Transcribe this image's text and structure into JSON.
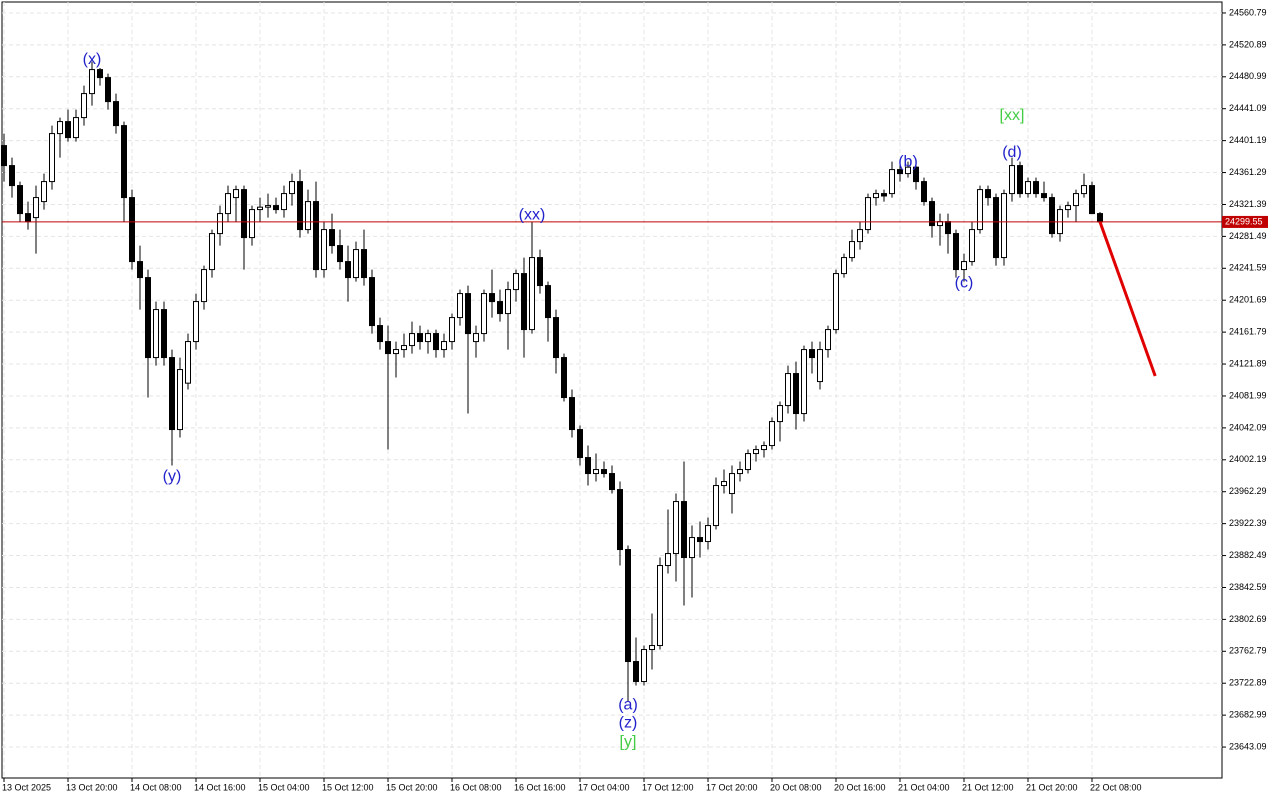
{
  "chart_data": {
    "type": "candlestick",
    "ylim": [
      23604.4,
      24574.5
    ],
    "xlim": [
      -0.25,
      152.25
    ],
    "grid": true,
    "bull_color": "#ffffff",
    "bear_color": "#000000",
    "yticks": [
      24560.79,
      24520.89,
      24480.99,
      24441.09,
      24401.19,
      24361.29,
      24321.39,
      24281.49,
      24241.59,
      24201.69,
      24161.79,
      24121.89,
      24081.99,
      24042.09,
      24002.19,
      23962.29,
      23922.39,
      23882.49,
      23842.59,
      23802.69,
      23762.79,
      23722.89,
      23682.99,
      23643.09
    ],
    "xticks": [
      {
        "value": 0,
        "label": "13 Oct 2025"
      },
      {
        "value": 8,
        "label": "13 Oct 20:00"
      },
      {
        "value": 16,
        "label": "14 Oct 08:00"
      },
      {
        "value": 24,
        "label": "14 Oct 16:00"
      },
      {
        "value": 32,
        "label": "15 Oct 04:00"
      },
      {
        "value": 40,
        "label": "15 Oct 12:00"
      },
      {
        "value": 48,
        "label": "15 Oct 20:00"
      },
      {
        "value": 56,
        "label": "16 Oct 08:00"
      },
      {
        "value": 64,
        "label": "16 Oct 16:00"
      },
      {
        "value": 72,
        "label": "17 Oct 04:00"
      },
      {
        "value": 80,
        "label": "17 Oct 12:00"
      },
      {
        "value": 88,
        "label": "17 Oct 20:00"
      },
      {
        "value": 96,
        "label": "20 Oct 08:00"
      },
      {
        "value": 104,
        "label": "20 Oct 16:00"
      },
      {
        "value": 112,
        "label": "21 Oct 04:00"
      },
      {
        "value": 120,
        "label": "21 Oct 12:00"
      },
      {
        "value": 128,
        "label": "21 Oct 20:00"
      },
      {
        "value": 136,
        "label": "22 Oct 08:00"
      }
    ],
    "candles": [
      [
        24395,
        24410,
        24350,
        24370
      ],
      [
        24370,
        24380,
        24330,
        24345
      ],
      [
        24345,
        24350,
        24300,
        24310
      ],
      [
        24310,
        24325,
        24290,
        24300
      ],
      [
        24305,
        24345,
        24260,
        24330
      ],
      [
        24325,
        24360,
        24315,
        24350
      ],
      [
        24350,
        24420,
        24340,
        24410
      ],
      [
        24410,
        24430,
        24380,
        24425
      ],
      [
        24425,
        24440,
        24400,
        24405
      ],
      [
        24405,
        24440,
        24400,
        24430
      ],
      [
        24430,
        24470,
        24420,
        24460
      ],
      [
        24460,
        24500,
        24445,
        24490
      ],
      [
        24490,
        24492,
        24470,
        24480
      ],
      [
        24480,
        24485,
        24440,
        24450
      ],
      [
        24450,
        24460,
        24410,
        24420
      ],
      [
        24420,
        24425,
        24300,
        24330
      ],
      [
        24330,
        24340,
        24240,
        24250
      ],
      [
        24250,
        24270,
        24190,
        24230
      ],
      [
        24230,
        24240,
        24080,
        24130
      ],
      [
        24130,
        24200,
        24120,
        24190
      ],
      [
        24190,
        24200,
        24120,
        24130
      ],
      [
        24130,
        24140,
        23995,
        24040
      ],
      [
        24040,
        24130,
        24030,
        24115
      ],
      [
        24098,
        24160,
        24090,
        24150
      ],
      [
        24150,
        24210,
        24140,
        24200
      ],
      [
        24200,
        24245,
        24190,
        24240
      ],
      [
        24240,
        24290,
        24230,
        24285
      ],
      [
        24285,
        24320,
        24270,
        24310
      ],
      [
        24310,
        24345,
        24300,
        24335
      ],
      [
        24330,
        24345,
        24300,
        24340
      ],
      [
        24340,
        24345,
        24240,
        24280
      ],
      [
        24280,
        24320,
        24270,
        24315
      ],
      [
        24315,
        24330,
        24300,
        24318
      ],
      [
        24318,
        24335,
        24305,
        24320
      ],
      [
        24320,
        24330,
        24310,
        24315
      ],
      [
        24315,
        24345,
        24305,
        24335
      ],
      [
        24335,
        24360,
        24320,
        24350
      ],
      [
        24350,
        24365,
        24280,
        24290
      ],
      [
        24290,
        24340,
        24285,
        24325
      ],
      [
        24325,
        24350,
        24230,
        24240
      ],
      [
        24240,
        24300,
        24230,
        24290
      ],
      [
        24290,
        24310,
        24260,
        24270
      ],
      [
        24270,
        24290,
        24240,
        24250
      ],
      [
        24250,
        24270,
        24200,
        24230
      ],
      [
        24230,
        24275,
        24225,
        24265
      ],
      [
        24265,
        24290,
        24220,
        24230
      ],
      [
        24230,
        24240,
        24160,
        24170
      ],
      [
        24170,
        24180,
        24140,
        24150
      ],
      [
        24150,
        24170,
        24015,
        24135
      ],
      [
        24135,
        24150,
        24105,
        24140
      ],
      [
        24140,
        24160,
        24130,
        24145
      ],
      [
        24145,
        24175,
        24135,
        24160
      ],
      [
        24160,
        24170,
        24140,
        24150
      ],
      [
        24150,
        24165,
        24135,
        24160
      ],
      [
        24160,
        24165,
        24130,
        24140
      ],
      [
        24140,
        24160,
        24130,
        24150
      ],
      [
        24150,
        24185,
        24140,
        24180
      ],
      [
        24180,
        24215,
        24170,
        24210
      ],
      [
        24210,
        24220,
        24060,
        24160
      ],
      [
        24150,
        24170,
        24130,
        24160
      ],
      [
        24160,
        24215,
        24150,
        24210
      ],
      [
        24210,
        24240,
        24180,
        24200
      ],
      [
        24200,
        24215,
        24175,
        24185
      ],
      [
        24185,
        24225,
        24140,
        24215
      ],
      [
        24215,
        24240,
        24200,
        24235
      ],
      [
        24235,
        24255,
        24130,
        24165
      ],
      [
        24165,
        24300,
        24160,
        24255
      ],
      [
        24255,
        24265,
        24210,
        24220
      ],
      [
        24220,
        24225,
        24150,
        24180
      ],
      [
        24180,
        24190,
        24110,
        24130
      ],
      [
        24130,
        24135,
        24075,
        24080
      ],
      [
        24080,
        24090,
        24030,
        24040
      ],
      [
        24040,
        24045,
        23995,
        24005
      ],
      [
        24005,
        24020,
        23970,
        23985
      ],
      [
        23985,
        24010,
        23975,
        23990
      ],
      [
        23990,
        24000,
        23980,
        23985
      ],
      [
        23985,
        23995,
        23960,
        23965
      ],
      [
        23965,
        23975,
        23870,
        23890
      ],
      [
        23890,
        23895,
        23700,
        23750
      ],
      [
        23750,
        23780,
        23720,
        23725
      ],
      [
        23725,
        23770,
        23720,
        23765
      ],
      [
        23765,
        23810,
        23740,
        23770
      ],
      [
        23770,
        23880,
        23765,
        23870
      ],
      [
        23870,
        23940,
        23860,
        23885
      ],
      [
        23885,
        23960,
        23850,
        23950
      ],
      [
        23950,
        24000,
        23820,
        23880
      ],
      [
        23880,
        23920,
        23830,
        23905
      ],
      [
        23905,
        23925,
        23880,
        23900
      ],
      [
        23900,
        23930,
        23890,
        23920
      ],
      [
        23920,
        23980,
        23915,
        23970
      ],
      [
        23970,
        23990,
        23960,
        23975
      ],
      [
        23960,
        23995,
        23935,
        23985
      ],
      [
        23985,
        24000,
        23975,
        23990
      ],
      [
        23990,
        24015,
        23985,
        24010
      ],
      [
        24010,
        24020,
        24000,
        24015
      ],
      [
        24015,
        24025,
        24005,
        24020
      ],
      [
        24020,
        24055,
        24015,
        24050
      ],
      [
        24050,
        24075,
        24025,
        24070
      ],
      [
        24070,
        24120,
        24060,
        24110
      ],
      [
        24110,
        24125,
        24040,
        24060
      ],
      [
        24060,
        24145,
        24050,
        24140
      ],
      [
        24140,
        24150,
        24110,
        24130
      ],
      [
        24100,
        24150,
        24090,
        24140
      ],
      [
        24140,
        24170,
        24130,
        24165
      ],
      [
        24165,
        24240,
        24160,
        24235
      ],
      [
        24235,
        24260,
        24230,
        24255
      ],
      [
        24255,
        24290,
        24250,
        24275
      ],
      [
        24275,
        24300,
        24265,
        24290
      ],
      [
        24290,
        24335,
        24285,
        24330
      ],
      [
        24330,
        24340,
        24320,
        24335
      ],
      [
        24335,
        24340,
        24325,
        24332
      ],
      [
        24335,
        24375,
        24330,
        24365
      ],
      [
        24365,
        24375,
        24350,
        24360
      ],
      [
        24360,
        24375,
        24355,
        24368
      ],
      [
        24368,
        24372,
        24340,
        24350
      ],
      [
        24350,
        24355,
        24320,
        24325
      ],
      [
        24325,
        24330,
        24280,
        24295
      ],
      [
        24295,
        24310,
        24270,
        24300
      ],
      [
        24300,
        24310,
        24260,
        24285
      ],
      [
        24285,
        24290,
        24230,
        24240
      ],
      [
        24240,
        24260,
        24225,
        24250
      ],
      [
        24250,
        24300,
        24245,
        24290
      ],
      [
        24290,
        24345,
        24285,
        24340
      ],
      [
        24340,
        24345,
        24320,
        24330
      ],
      [
        24330,
        24335,
        24245,
        24255
      ],
      [
        24255,
        24340,
        24245,
        24335
      ],
      [
        24335,
        24380,
        24325,
        24370
      ],
      [
        24370,
        24375,
        24330,
        24335
      ],
      [
        24335,
        24355,
        24330,
        24350
      ],
      [
        24350,
        24355,
        24330,
        24335
      ],
      [
        24335,
        24350,
        24325,
        24330
      ],
      [
        24330,
        24335,
        24280,
        24285
      ],
      [
        24285,
        24320,
        24275,
        24315
      ],
      [
        24315,
        24325,
        24305,
        24320
      ],
      [
        24320,
        24340,
        24300,
        24335
      ],
      [
        24335,
        24360,
        24330,
        24345
      ],
      [
        24345,
        24350,
        24310,
        24310
      ],
      [
        24310,
        24312,
        24298,
        24299.55
      ]
    ],
    "current_price": 24299.55,
    "current_price_color": "#c00000",
    "forecast": {
      "x": [
        137,
        143.9
      ],
      "values": [
        24299.55,
        24107
      ],
      "color": "#e00000"
    },
    "annotations": [
      {
        "text": "(x)",
        "x": 11,
        "price": 24502,
        "color": "#2222cc"
      },
      {
        "text": "(y)",
        "x": 21,
        "price": 23981,
        "color": "#2222cc"
      },
      {
        "text": "(xx)",
        "x": 66,
        "price": 24308,
        "color": "#2222cc"
      },
      {
        "text": "(a)",
        "x": 78,
        "price": 23695,
        "color": "#2222cc"
      },
      {
        "text": "(z)",
        "x": 78,
        "price": 23673,
        "color": "#2222cc"
      },
      {
        "text": "[y]",
        "x": 78,
        "price": 23649,
        "color": "#44cc44"
      },
      {
        "text": "(b)",
        "x": 113,
        "price": 24374,
        "color": "#2222cc"
      },
      {
        "text": "(c)",
        "x": 120,
        "price": 24223,
        "color": "#2222cc"
      },
      {
        "text": "[xx]",
        "x": 126,
        "price": 24432,
        "color": "#44cc44"
      },
      {
        "text": "(d)",
        "x": 126,
        "price": 24386,
        "color": "#2222cc"
      }
    ]
  }
}
